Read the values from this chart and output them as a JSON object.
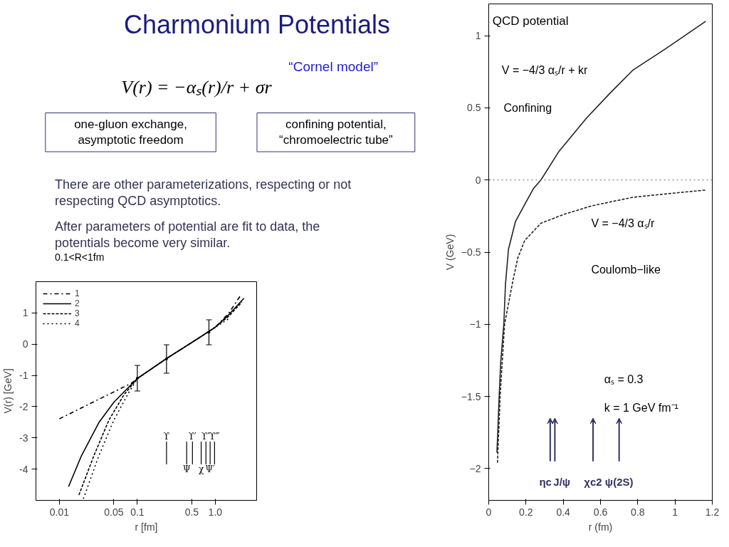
{
  "chart_data": [
    {
      "type": "other",
      "title": "Charmonium Potentials",
      "annotations": [
        "V(r) = −αₛ(r)/r + σr",
        "“Cornel model”",
        "one-gluon exchange,\nasymptotic freedom",
        "confining potential,\n“chromoelectric tube”",
        "There are other parameterizations, respecting or not respecting QCD asymptotics.",
        "After parameters of potential are fit to data, the potentials become very similar.",
        "0.1<R<1fm"
      ]
    },
    {
      "type": "line",
      "xlabel": "r [fm]",
      "ylabel": "V(r) [GeV]",
      "log": "x",
      "xlim": [
        0.005,
        3.4
      ],
      "ylim": [
        -5,
        2
      ],
      "xticks": [
        0.01,
        0.05,
        0.1,
        0.5,
        {
          "value": 1,
          "label": "1.0"
        }
      ],
      "yticks": [
        1,
        0,
        -1,
        -2,
        -3,
        -4
      ],
      "grid": false,
      "legend": "top left",
      "marker": "none",
      "series": [
        {
          "name": "1",
          "color": "#000000",
          "line_style": "dashdot",
          "x": [
            0.01,
            0.03,
            0.05,
            0.084,
            0.1,
            0.15,
            0.237,
            0.4,
            0.6,
            0.83,
            1.0,
            1.5,
            2.1
          ],
          "values": [
            -2.39,
            -1.8,
            -1.53,
            -1.25,
            -1.1,
            -0.8,
            -0.46,
            -0.1,
            0.18,
            0.41,
            0.54,
            1.0,
            1.55
          ]
        },
        {
          "name": "2",
          "color": "#000000",
          "line_style": "solid",
          "x": [
            0.0131,
            0.0192,
            0.0321,
            0.05,
            0.078,
            0.1,
            0.15,
            0.237,
            0.4,
            0.6,
            0.83,
            1.0,
            1.5,
            2.34
          ],
          "values": [
            -4.56,
            -3.57,
            -2.51,
            -1.86,
            -1.37,
            -1.1,
            -0.8,
            -0.46,
            -0.1,
            0.18,
            0.41,
            0.54,
            0.95,
            1.47
          ]
        },
        {
          "name": "3",
          "color": "#000000",
          "line_style": "dashed",
          "x": [
            0.0178,
            0.0277,
            0.0432,
            0.0674,
            0.1,
            0.15,
            0.237,
            0.4,
            0.6,
            0.83,
            1.0,
            1.5,
            2.2
          ],
          "values": [
            -4.83,
            -3.57,
            -2.43,
            -1.62,
            -1.1,
            -0.8,
            -0.46,
            -0.1,
            0.18,
            0.41,
            0.54,
            0.9,
            1.35
          ]
        },
        {
          "name": "4",
          "color": "#000000",
          "line_style": "dotted",
          "x": [
            0.0203,
            0.0321,
            0.05,
            0.078,
            0.1,
            0.15,
            0.237,
            0.4,
            0.6,
            0.83,
            1.0,
            1.5
          ],
          "values": [
            -4.95,
            -3.57,
            -2.43,
            -1.54,
            -1.1,
            -0.8,
            -0.46,
            -0.1,
            0.18,
            0.41,
            0.54,
            0.82
          ]
        },
        {
          "type": "scatter",
          "color": "#000000",
          "x": [
            0.1,
            0.237,
            0.83
          ],
          "values": [
            -1.09,
            -0.47,
            0.38
          ],
          "errors": [
            [
              -1.5,
              -0.68
            ],
            [
              -0.93,
              -0.02
            ],
            [
              -0.02,
              0.78
            ]
          ]
        }
      ],
      "annotations": [
        "ϒ",
        "Ψ",
        "ϒ′",
        "χ",
        "ϒ″",
        "Ψ′",
        "ϒ‴"
      ]
    },
    {
      "type": "line",
      "xlabel": "r (fm)",
      "ylabel": "V (GeV)",
      "xlim": [
        0,
        1.2
      ],
      "ylim": [
        -2.22,
        1.22
      ],
      "xticks": [
        0,
        0.2,
        0.4,
        0.6,
        0.8,
        1,
        1.2
      ],
      "yticks": [
        1,
        0.5,
        0,
        {
          "value": -0.5,
          "label": "−0.5"
        },
        {
          "value": -1,
          "label": "−1"
        },
        {
          "value": -1.5,
          "label": "−1.5"
        },
        {
          "value": -2,
          "label": "−2"
        }
      ],
      "grid": false,
      "marker": "none",
      "series": [
        {
          "color": "#222222",
          "line_style": "solid",
          "x": [
            0.044,
            0.05,
            0.056,
            0.065,
            0.081,
            0.09,
            0.106,
            0.143,
            0.193,
            0.24,
            0.28,
            0.378,
            0.526,
            0.65,
            0.773,
            0.95,
            1.165
          ],
          "values": [
            -1.89,
            -1.7,
            -1.5,
            -1.25,
            -1.0,
            -0.72,
            -0.48,
            -0.29,
            -0.17,
            -0.06,
            0.0,
            0.2,
            0.43,
            0.6,
            0.76,
            0.91,
            1.1
          ]
        },
        {
          "color": "#222222",
          "line_style": "dashed",
          "x": [
            0.047,
            0.061,
            0.085,
            0.131,
            0.156,
            0.193,
            0.28,
            0.4,
            0.55,
            0.773,
            1.0,
            1.165
          ],
          "values": [
            -1.96,
            -1.5,
            -1.0,
            -0.69,
            -0.54,
            -0.42,
            -0.3,
            -0.24,
            -0.18,
            -0.12,
            -0.09,
            -0.07
          ]
        }
      ],
      "ref_lines": [
        {
          "axis": "y",
          "value": 0,
          "color": "#666666",
          "line_style": "dotted"
        }
      ],
      "annotations": [
        "QCD potential",
        "V = −4/3 αₛ/r + kr",
        "Confining",
        "V = −4/3 αₛ/r",
        "Coulomb−like",
        "αₛ = 0.3",
        "k   = 1 GeV fm⁻¹",
        "ηc",
        "J/ψ",
        "χc2",
        "ψ(2S)"
      ]
    }
  ]
}
